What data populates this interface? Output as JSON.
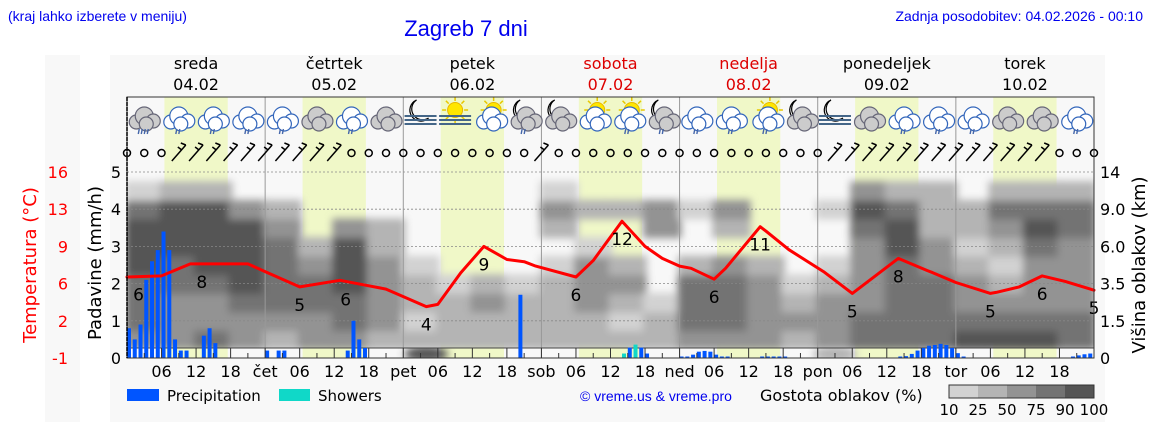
{
  "header": {
    "menu_hint": "(kraj lahko izberete v meniju)",
    "title": "Zagreb 7 dni",
    "updated": "Zadnja posodobitev: 04.02.2026 - 00:10"
  },
  "colors": {
    "link": "#0000ee",
    "temperature": "#ff0000",
    "precipitation": "#0055ff",
    "showers": "#10d8c8",
    "weekend": "#dd0000",
    "daylight": "#f0f8c8",
    "cloud_levels": [
      "#d2d2d2",
      "#b4b4b4",
      "#939393",
      "#737373",
      "#555555"
    ]
  },
  "days": [
    {
      "name": "sreda",
      "date": "04.02",
      "weekend": false,
      "abbr": ""
    },
    {
      "name": "četrtek",
      "date": "05.02",
      "weekend": false,
      "abbr": "čet"
    },
    {
      "name": "petek",
      "date": "06.02",
      "weekend": false,
      "abbr": "pet"
    },
    {
      "name": "sobota",
      "date": "07.02",
      "weekend": true,
      "abbr": "sob"
    },
    {
      "name": "nedelja",
      "date": "08.02",
      "weekend": true,
      "abbr": "ned"
    },
    {
      "name": "ponedeljek",
      "date": "09.02",
      "weekend": false,
      "abbr": "pon"
    },
    {
      "name": "torek",
      "date": "10.02",
      "weekend": false,
      "abbr": "tor"
    }
  ],
  "chart_data": {
    "type": "line",
    "title": "Zagreb 7 dni",
    "x_hour_ticks": [
      "06",
      "12",
      "18"
    ],
    "y_left": {
      "label": "Padavine (mm/h)",
      "ticks": [
        "0",
        "1",
        "2",
        "3",
        "4",
        "5"
      ],
      "range": [
        0,
        5
      ]
    },
    "y_temp": {
      "label": "Temperatura (°C)",
      "ticks": [
        "-1",
        "2",
        "6",
        "9",
        "13",
        "16"
      ],
      "range": [
        -1,
        16
      ]
    },
    "y_right": {
      "label": "Višina oblakov (km)",
      "ticks": [
        "0",
        "1.5",
        "3.5",
        "6.0",
        "9.0",
        "14"
      ]
    },
    "grid": true,
    "temperature": [
      [
        "04.02 00",
        6.4
      ],
      [
        "04.02 06",
        6.5
      ],
      [
        "04.02 11",
        7.6
      ],
      [
        "04.02 21",
        7.6
      ],
      [
        "05.02 00",
        6.9
      ],
      [
        "05.02 06",
        5.5
      ],
      [
        "05.02 13",
        6.1
      ],
      [
        "05.02 18",
        5.6
      ],
      [
        "05.02 21",
        5.3
      ],
      [
        "06.02 04",
        3.7
      ],
      [
        "06.02 06",
        3.9
      ],
      [
        "06.02 10",
        6.8
      ],
      [
        "06.02 14",
        9.2
      ],
      [
        "06.02 18",
        8.0
      ],
      [
        "06.02 21",
        7.8
      ],
      [
        "06.02 23",
        7.4
      ],
      [
        "07.02 06",
        6.4
      ],
      [
        "07.02 09",
        7.9
      ],
      [
        "07.02 14",
        11.5
      ],
      [
        "07.02 18",
        9.2
      ],
      [
        "07.02 21",
        8.1
      ],
      [
        "08.02 00",
        7.4
      ],
      [
        "08.02 02",
        7.2
      ],
      [
        "08.02 06",
        6.2
      ],
      [
        "08.02 08",
        7.2
      ],
      [
        "08.02 14",
        11.0
      ],
      [
        "08.02 15",
        10.6
      ],
      [
        "08.02 19",
        8.9
      ],
      [
        "09.02 01",
        6.9
      ],
      [
        "09.02 06",
        4.9
      ],
      [
        "09.02 14",
        8.1
      ],
      [
        "09.02 19",
        7.0
      ],
      [
        "09.02 20",
        6.8
      ],
      [
        "10.02 00",
        5.9
      ],
      [
        "10.02 06",
        4.9
      ],
      [
        "10.02 07",
        5.0
      ],
      [
        "10.02 11",
        5.5
      ],
      [
        "10.02 15",
        6.5
      ],
      [
        "10.02 19",
        6.0
      ],
      [
        "11.02 00",
        5.2
      ]
    ],
    "temperature_labels": [
      [
        "04.02 02",
        "6"
      ],
      [
        "04.02 13",
        "8"
      ],
      [
        "05.02 06",
        "5"
      ],
      [
        "05.02 14",
        "6"
      ],
      [
        "06.02 04",
        "4"
      ],
      [
        "06.02 14",
        "9"
      ],
      [
        "07.02 06",
        "6"
      ],
      [
        "07.02 14",
        "12"
      ],
      [
        "08.02 06",
        "6"
      ],
      [
        "08.02 14",
        "11"
      ],
      [
        "09.02 06",
        "5"
      ],
      [
        "09.02 14",
        "8"
      ],
      [
        "10.02 06",
        "5"
      ],
      [
        "10.02 15",
        "6"
      ],
      [
        "11.02 00",
        "5"
      ]
    ],
    "precipitation": [
      [
        "04.02 00",
        0.8,
        "p"
      ],
      [
        "04.02 01",
        0.5,
        "p"
      ],
      [
        "04.02 02",
        0.9,
        "p"
      ],
      [
        "04.02 03",
        2.1,
        "p"
      ],
      [
        "04.02 04",
        2.6,
        "p"
      ],
      [
        "04.02 05",
        2.9,
        "p"
      ],
      [
        "04.02 06",
        3.4,
        "p"
      ],
      [
        "04.02 07",
        2.9,
        "p"
      ],
      [
        "04.02 08",
        0.5,
        "p"
      ],
      [
        "04.02 09",
        0.2,
        "p"
      ],
      [
        "04.02 10",
        0.2,
        "p"
      ],
      [
        "04.02 13",
        0.6,
        "p"
      ],
      [
        "04.02 14",
        0.8,
        "p"
      ],
      [
        "04.02 15",
        0.4,
        "p"
      ],
      [
        "05.02 00",
        0.2,
        "p"
      ],
      [
        "05.02 02",
        0.2,
        "p"
      ],
      [
        "05.02 03",
        0.2,
        "p"
      ],
      [
        "05.02 14",
        0.2,
        "p"
      ],
      [
        "05.02 15",
        1.0,
        "p"
      ],
      [
        "05.02 16",
        0.5,
        "p"
      ],
      [
        "05.02 17",
        0.27,
        "p"
      ],
      [
        "06.02 20",
        1.7,
        "p"
      ],
      [
        "07.02 14",
        0.12,
        "s"
      ],
      [
        "07.02 15",
        0.28,
        "p"
      ],
      [
        "07.02 16",
        0.36,
        "s"
      ],
      [
        "07.02 17",
        0.28,
        "p"
      ],
      [
        "07.02 18",
        0.12,
        "p"
      ],
      [
        "08.02 00",
        0.04,
        "p"
      ],
      [
        "08.02 01",
        0.04,
        "p"
      ],
      [
        "08.02 02",
        0.09,
        "p"
      ],
      [
        "08.02 03",
        0.17,
        "p"
      ],
      [
        "08.02 04",
        0.19,
        "p"
      ],
      [
        "08.02 05",
        0.17,
        "p"
      ],
      [
        "08.02 06",
        0.09,
        "p"
      ],
      [
        "08.02 07",
        0.04,
        "p"
      ],
      [
        "08.02 08",
        0.04,
        "p"
      ],
      [
        "08.02 14",
        0.04,
        "p"
      ],
      [
        "08.02 15",
        0.04,
        "p"
      ],
      [
        "08.02 16",
        0.04,
        "p"
      ],
      [
        "08.02 17",
        0.04,
        "p"
      ],
      [
        "08.02 18",
        0.04,
        "p"
      ],
      [
        "09.02 14",
        0.04,
        "p"
      ],
      [
        "09.02 15",
        0.05,
        "p"
      ],
      [
        "09.02 16",
        0.11,
        "p"
      ],
      [
        "09.02 17",
        0.2,
        "p"
      ],
      [
        "09.02 18",
        0.27,
        "p"
      ],
      [
        "09.02 19",
        0.33,
        "p"
      ],
      [
        "09.02 20",
        0.35,
        "p"
      ],
      [
        "09.02 21",
        0.38,
        "p"
      ],
      [
        "09.02 22",
        0.35,
        "p"
      ],
      [
        "09.02 23",
        0.27,
        "p"
      ],
      [
        "10.02 00",
        0.13,
        "p"
      ],
      [
        "10.02 01",
        0.04,
        "p"
      ],
      [
        "10.02 20",
        0.04,
        "p"
      ],
      [
        "10.02 21",
        0.07,
        "p"
      ],
      [
        "10.02 22",
        0.1,
        "p"
      ],
      [
        "10.02 23",
        0.12,
        "p"
      ]
    ],
    "cloud_density_6h": [
      [
        50,
        75,
        75,
        75,
        90,
        90,
        90,
        75,
        10
      ],
      [
        60,
        50,
        50,
        75,
        75,
        90,
        90,
        90,
        25
      ],
      [
        75,
        50,
        50,
        75,
        90,
        90,
        90,
        90,
        25
      ],
      [
        50,
        50,
        75,
        90,
        90,
        90,
        90,
        50,
        0
      ],
      [
        25,
        50,
        75,
        75,
        75,
        75,
        50,
        25,
        0
      ],
      [
        50,
        50,
        75,
        75,
        50,
        25,
        0,
        0,
        0
      ],
      [
        50,
        75,
        75,
        90,
        90,
        90,
        50,
        0,
        0
      ],
      [
        25,
        50,
        50,
        50,
        50,
        25,
        25,
        0,
        0
      ],
      [
        25,
        10,
        25,
        25,
        10,
        0,
        0,
        0,
        0
      ],
      [
        25,
        25,
        25,
        10,
        0,
        0,
        0,
        0,
        0
      ],
      [
        25,
        25,
        50,
        25,
        0,
        0,
        0,
        0,
        0
      ],
      [
        25,
        25,
        25,
        10,
        0,
        0,
        0,
        0,
        0
      ],
      [
        25,
        25,
        25,
        25,
        10,
        0,
        25,
        50,
        10
      ],
      [
        25,
        25,
        50,
        50,
        50,
        10,
        0,
        25,
        0
      ],
      [
        25,
        10,
        25,
        50,
        25,
        0,
        0,
        25,
        0
      ],
      [
        25,
        25,
        10,
        0,
        0,
        0,
        50,
        50,
        0
      ],
      [
        50,
        75,
        75,
        75,
        25,
        0,
        0,
        10,
        0
      ],
      [
        50,
        75,
        75,
        75,
        50,
        0,
        25,
        50,
        0
      ],
      [
        50,
        50,
        50,
        50,
        25,
        0,
        0,
        0,
        0
      ],
      [
        25,
        50,
        25,
        10,
        0,
        0,
        0,
        0,
        0
      ],
      [
        50,
        50,
        50,
        25,
        10,
        0,
        0,
        10,
        0
      ],
      [
        75,
        75,
        50,
        50,
        50,
        50,
        75,
        90,
        50
      ],
      [
        75,
        75,
        75,
        75,
        75,
        90,
        90,
        75,
        25
      ],
      [
        75,
        75,
        75,
        75,
        50,
        50,
        25,
        25,
        25
      ],
      [
        90,
        75,
        50,
        50,
        25,
        10,
        25,
        25,
        0
      ],
      [
        90,
        75,
        50,
        25,
        10,
        25,
        50,
        75,
        25
      ],
      [
        90,
        75,
        50,
        50,
        50,
        75,
        90,
        75,
        25
      ],
      [
        75,
        75,
        50,
        50,
        50,
        50,
        75,
        75,
        25
      ]
    ],
    "low_fog": [
      [
        "06.02 04",
        90
      ],
      [
        "09.02 03",
        25
      ]
    ],
    "weather_icons_6h": [
      "cloud-heavy-rain",
      "cloud-rain",
      "cloud-rain",
      "cloud-rain",
      "cloud-rain",
      "cloud",
      "cloud-rain",
      "cloud",
      "moon-fog",
      "sun-fog",
      "sun-cloud",
      "moon-cloud-rain",
      "moon-cloud",
      "sun-cloud",
      "sun-cloud-rain",
      "moon-cloud-rain",
      "cloud-rain",
      "cloud-rain",
      "sun-cloud-rain",
      "moon-cloud",
      "moon-fog",
      "cloud",
      "cloud-rain",
      "cloud-rain",
      "cloud-rain",
      "cloud",
      "cloud",
      "cloud-rain"
    ],
    "wind_3h": [
      "calm",
      "calm",
      "calm",
      "barb",
      "barb",
      "barb",
      "barb",
      "barb",
      "barb",
      "barb",
      "barb",
      "barb",
      "barb",
      "calm",
      "calm",
      "calm",
      "calm",
      "calm",
      "calm",
      "calm",
      "calm",
      "calm",
      "calm",
      "calm",
      "barb",
      "calm",
      "calm",
      "calm",
      "calm",
      "calm",
      "calm",
      "calm",
      "calm",
      "calm",
      "calm",
      "calm",
      "calm",
      "calm",
      "calm",
      "calm",
      "calm",
      "barb",
      "barb",
      "barb",
      "barb",
      "barb",
      "barb",
      "barb",
      "barb",
      "barb",
      "barb",
      "barb",
      "barb",
      "barb",
      "calm",
      "calm",
      "calm"
    ],
    "legend": {
      "precipitation": "Precipitation",
      "showers": "Showers",
      "cloud_title": "Gostota oblakov (%)",
      "cloud_levels": [
        "10",
        "25",
        "50",
        "75",
        "90",
        "100"
      ]
    }
  },
  "footer": {
    "copyright": "© vreme.us & vreme.pro"
  }
}
